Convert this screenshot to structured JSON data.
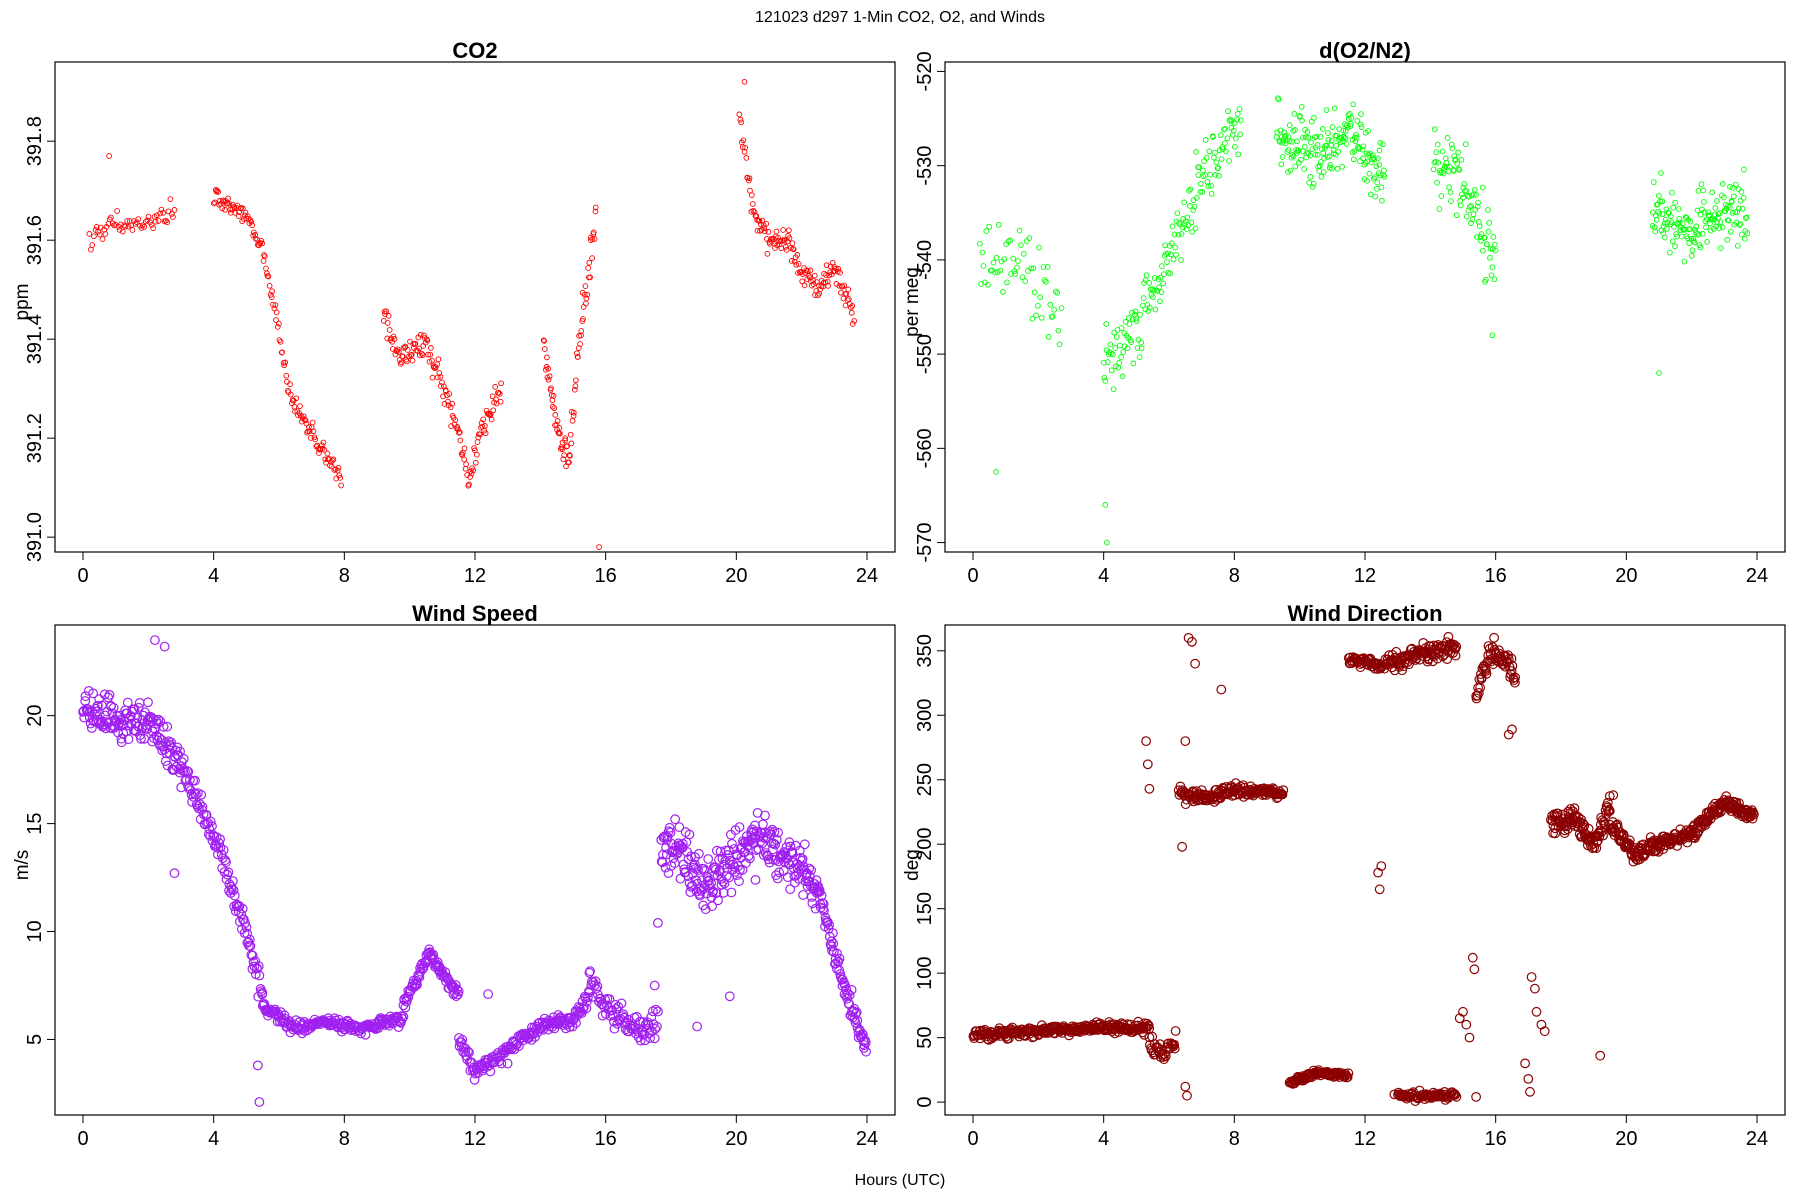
{
  "figure": {
    "suptitle": "121023   d297   1-Min CO2, O2, and Winds",
    "xlabel": "Hours (UTC)"
  },
  "chart_data": [
    {
      "id": "co2",
      "type": "scatter",
      "title": "CO2",
      "ylabel": "ppm",
      "xlim": [
        0,
        24
      ],
      "ylim": [
        390.97,
        391.96
      ],
      "xticks": [
        0,
        4,
        8,
        12,
        16,
        20,
        24
      ],
      "yticks": [
        391.0,
        391.2,
        391.4,
        391.6,
        391.8
      ],
      "ytick_labels": [
        "391.0",
        "391.2",
        "391.4",
        "391.6",
        "391.8"
      ],
      "color": "#ff0000",
      "marker_size": "small",
      "segments": [
        {
          "x0": 0.2,
          "x1": 2.8,
          "n": 60,
          "y": [
            [
              0.2,
              391.61
            ],
            [
              1.0,
              391.63
            ],
            [
              1.8,
              391.63
            ],
            [
              2.8,
              391.66
            ]
          ],
          "noise": 0.025
        },
        {
          "x0": 4.0,
          "x1": 7.9,
          "n": 140,
          "y": [
            [
              4.0,
              391.69
            ],
            [
              5.0,
              391.65
            ],
            [
              5.5,
              391.58
            ],
            [
              6.0,
              391.42
            ],
            [
              6.3,
              391.29
            ],
            [
              7.0,
              391.21
            ],
            [
              7.9,
              391.12
            ]
          ],
          "noise": 0.025
        },
        {
          "x0": 9.2,
          "x1": 12.8,
          "n": 140,
          "y": [
            [
              9.2,
              391.47
            ],
            [
              9.6,
              391.36
            ],
            [
              10.5,
              391.39
            ],
            [
              11.2,
              391.28
            ],
            [
              11.8,
              391.12
            ],
            [
              12.2,
              391.22
            ],
            [
              12.8,
              391.3
            ]
          ],
          "noise": 0.035
        },
        {
          "x0": 14.1,
          "x1": 15.7,
          "n": 80,
          "y": [
            [
              14.1,
              391.38
            ],
            [
              14.6,
              391.2
            ],
            [
              14.9,
              391.16
            ],
            [
              15.2,
              391.4
            ],
            [
              15.7,
              391.64
            ]
          ],
          "noise": 0.05
        },
        {
          "x0": 20.1,
          "x1": 23.6,
          "n": 140,
          "y": [
            [
              20.1,
              391.85
            ],
            [
              20.5,
              391.66
            ],
            [
              21.0,
              391.6
            ],
            [
              21.5,
              391.6
            ],
            [
              22.0,
              391.54
            ],
            [
              22.5,
              391.5
            ],
            [
              23.0,
              391.55
            ],
            [
              23.6,
              391.45
            ]
          ],
          "noise": 0.03
        }
      ],
      "points": [
        [
          15.8,
          390.98
        ],
        [
          0.8,
          391.77
        ],
        [
          20.25,
          391.92
        ]
      ]
    },
    {
      "id": "o2",
      "type": "scatter",
      "title": "d(O2/N2)",
      "ylabel": "per meg",
      "xlim": [
        0,
        24
      ],
      "ylim": [
        -571,
        -519
      ],
      "xticks": [
        0,
        4,
        8,
        12,
        16,
        20,
        24
      ],
      "yticks": [
        -570,
        -560,
        -550,
        -540,
        -530,
        -520
      ],
      "ytick_labels": [
        "-570",
        "-560",
        "-550",
        "-540",
        "-530",
        "-520"
      ],
      "color": "#00ff00",
      "marker_size": "small",
      "segments": [
        {
          "x0": 0.2,
          "x1": 2.7,
          "n": 60,
          "y": [
            [
              0.2,
              -540
            ],
            [
              1.5,
              -541
            ],
            [
              2.7,
              -546
            ]
          ],
          "noise": 6
        },
        {
          "x0": 4.0,
          "x1": 8.2,
          "n": 170,
          "y": [
            [
              4.0,
              -551
            ],
            [
              5.0,
              -547
            ],
            [
              6.0,
              -540
            ],
            [
              7.0,
              -531
            ],
            [
              8.2,
              -526
            ]
          ],
          "noise": 4.5
        },
        {
          "x0": 9.3,
          "x1": 12.6,
          "n": 180,
          "y": [
            [
              9.3,
              -526
            ],
            [
              10.5,
              -529
            ],
            [
              11.5,
              -526
            ],
            [
              12.6,
              -532
            ]
          ],
          "noise": 4.5
        },
        {
          "x0": 14.1,
          "x1": 16.0,
          "n": 90,
          "y": [
            [
              14.1,
              -529
            ],
            [
              15.0,
              -532
            ],
            [
              16.0,
              -540
            ]
          ],
          "noise": 5
        },
        {
          "x0": 20.8,
          "x1": 23.7,
          "n": 150,
          "y": [
            [
              20.8,
              -535
            ],
            [
              22.0,
              -537
            ],
            [
              23.0,
              -534
            ],
            [
              23.7,
              -535
            ]
          ],
          "noise": 4.5
        }
      ],
      "points": [
        [
          4.05,
          -566
        ],
        [
          4.1,
          -570
        ],
        [
          0.7,
          -562.5
        ],
        [
          15.9,
          -548
        ],
        [
          21.0,
          -552
        ]
      ]
    },
    {
      "id": "wspd",
      "type": "scatter",
      "title": "Wind Speed",
      "ylabel": "m/s",
      "xlim": [
        0,
        24
      ],
      "ylim": [
        1.5,
        24.2
      ],
      "xticks": [
        0,
        4,
        8,
        12,
        16,
        20,
        24
      ],
      "yticks": [
        5,
        10,
        15,
        20
      ],
      "ytick_labels": [
        "5",
        "10",
        "15",
        "20"
      ],
      "color": "#a020f0",
      "marker_size": "large",
      "segments": [
        {
          "x0": 0.0,
          "x1": 3.0,
          "n": 150,
          "y": [
            [
              0.0,
              20.6
            ],
            [
              1.0,
              19.8
            ],
            [
              2.0,
              19.8
            ],
            [
              3.0,
              17.5
            ]
          ],
          "noise": 1.2
        },
        {
          "x0": 3.0,
          "x1": 5.5,
          "n": 110,
          "y": [
            [
              3.0,
              17.5
            ],
            [
              4.0,
              14.5
            ],
            [
              5.0,
              10.0
            ],
            [
              5.5,
              7.0
            ]
          ],
          "noise": 0.8
        },
        {
          "x0": 5.5,
          "x1": 9.8,
          "n": 180,
          "y": [
            [
              5.5,
              6.5
            ],
            [
              6.5,
              5.5
            ],
            [
              7.5,
              5.8
            ],
            [
              8.5,
              5.5
            ],
            [
              9.8,
              6.0
            ]
          ],
          "noise": 0.35
        },
        {
          "x0": 9.8,
          "x1": 11.5,
          "n": 80,
          "y": [
            [
              9.8,
              6.5
            ],
            [
              10.6,
              9.0
            ],
            [
              11.0,
              8.0
            ],
            [
              11.5,
              7.0
            ]
          ],
          "noise": 0.4
        },
        {
          "x0": 11.5,
          "x1": 15.5,
          "n": 170,
          "y": [
            [
              11.5,
              5.0
            ],
            [
              12.0,
              3.5
            ],
            [
              13.0,
              4.5
            ],
            [
              14.0,
              5.6
            ],
            [
              15.0,
              6.0
            ],
            [
              15.5,
              7.0
            ]
          ],
          "noise": 0.45
        },
        {
          "x0": 15.5,
          "x1": 17.6,
          "n": 80,
          "y": [
            [
              15.5,
              8.0
            ],
            [
              16.0,
              6.5
            ],
            [
              17.0,
              5.5
            ],
            [
              17.6,
              5.7
            ]
          ],
          "noise": 0.9
        },
        {
          "x0": 17.7,
          "x1": 22.5,
          "n": 260,
          "y": [
            [
              17.7,
              14.0
            ],
            [
              18.5,
              13.5
            ],
            [
              19.0,
              12.0
            ],
            [
              20.0,
              13.5
            ],
            [
              20.5,
              14.5
            ],
            [
              21.5,
              13.5
            ],
            [
              22.5,
              12.0
            ]
          ],
          "noise": 1.5
        },
        {
          "x0": 22.5,
          "x1": 24.0,
          "n": 80,
          "y": [
            [
              22.5,
              12.0
            ],
            [
              23.0,
              9.0
            ],
            [
              23.5,
              6.5
            ],
            [
              24.0,
              4.5
            ]
          ],
          "noise": 0.7
        }
      ],
      "points": [
        [
          5.4,
          2.1
        ],
        [
          5.35,
          3.8
        ],
        [
          2.2,
          23.5
        ],
        [
          2.5,
          23.2
        ],
        [
          2.8,
          12.7
        ],
        [
          12.4,
          7.1
        ],
        [
          17.5,
          7.5
        ],
        [
          17.6,
          10.4
        ],
        [
          18.8,
          5.6
        ],
        [
          19.8,
          7.0
        ]
      ]
    },
    {
      "id": "wdir",
      "type": "scatter",
      "title": "Wind Direction",
      "ylabel": "deg",
      "xlim": [
        0,
        24
      ],
      "ylim": [
        -10,
        370
      ],
      "xticks": [
        0,
        4,
        8,
        12,
        16,
        20,
        24
      ],
      "yticks": [
        0,
        50,
        100,
        150,
        200,
        250,
        300,
        350
      ],
      "ytick_labels": [
        "0",
        "50",
        "100",
        "150",
        "200",
        "250",
        "300",
        "350"
      ],
      "color": "#8b0000",
      "marker_size": "large",
      "segments": [
        {
          "x0": 0.0,
          "x1": 5.4,
          "n": 260,
          "y": [
            [
              0.0,
              52
            ],
            [
              2.0,
              55
            ],
            [
              4.0,
              58
            ],
            [
              5.4,
              57
            ]
          ],
          "noise": 5
        },
        {
          "x0": 5.4,
          "x1": 6.2,
          "n": 35,
          "y": [
            [
              5.4,
              45
            ],
            [
              5.8,
              38
            ],
            [
              6.2,
              45
            ]
          ],
          "noise": 8
        },
        {
          "x0": 6.3,
          "x1": 9.5,
          "n": 160,
          "y": [
            [
              6.3,
              240
            ],
            [
              7.0,
              235
            ],
            [
              8.0,
              242
            ],
            [
              9.5,
              240
            ]
          ],
          "noise": 6
        },
        {
          "x0": 9.7,
          "x1": 11.5,
          "n": 80,
          "y": [
            [
              9.7,
              15
            ],
            [
              10.5,
              23
            ],
            [
              11.5,
              20
            ]
          ],
          "noise": 3
        },
        {
          "x0": 11.5,
          "x1": 12.5,
          "n": 50,
          "y": [
            [
              11.5,
              342
            ],
            [
              12.0,
              342
            ],
            [
              12.5,
              337
            ]
          ],
          "noise": 5
        },
        {
          "x0": 12.6,
          "x1": 14.8,
          "n": 110,
          "y": [
            [
              12.6,
              340
            ],
            [
              13.5,
              347
            ],
            [
              14.8,
              352
            ]
          ],
          "noise": 9
        },
        {
          "x0": 13.0,
          "x1": 14.8,
          "n": 70,
          "y": [
            [
              13.0,
              6
            ],
            [
              14.0,
              4
            ],
            [
              14.8,
              6
            ]
          ],
          "noise": 4
        },
        {
          "x0": 15.4,
          "x1": 16.6,
          "n": 60,
          "y": [
            [
              15.4,
              315
            ],
            [
              15.8,
              350
            ],
            [
              16.2,
              345
            ],
            [
              16.6,
              330
            ]
          ],
          "noise": 12
        },
        {
          "x0": 17.7,
          "x1": 19.5,
          "n": 110,
          "y": [
            [
              17.7,
              215
            ],
            [
              18.4,
              220
            ],
            [
              19.0,
              200
            ],
            [
              19.5,
              230
            ]
          ],
          "noise": 12
        },
        {
          "x0": 19.5,
          "x1": 23.9,
          "n": 260,
          "y": [
            [
              19.5,
              215
            ],
            [
              20.3,
              192
            ],
            [
              21.0,
              200
            ],
            [
              22.0,
              208
            ],
            [
              23.0,
              232
            ],
            [
              23.9,
              222
            ]
          ],
          "noise": 7
        }
      ],
      "points": [
        [
          5.3,
          280
        ],
        [
          5.35,
          262
        ],
        [
          5.4,
          243
        ],
        [
          6.5,
          12
        ],
        [
          6.55,
          5
        ],
        [
          6.6,
          360
        ],
        [
          6.7,
          357
        ],
        [
          6.8,
          340
        ],
        [
          7.6,
          320
        ],
        [
          6.4,
          198
        ],
        [
          6.5,
          280
        ],
        [
          12.4,
          178
        ],
        [
          12.45,
          165
        ],
        [
          12.5,
          183
        ],
        [
          12.9,
          6
        ],
        [
          14.9,
          65
        ],
        [
          15.0,
          70
        ],
        [
          15.1,
          60
        ],
        [
          15.2,
          50
        ],
        [
          15.3,
          112
        ],
        [
          15.35,
          103
        ],
        [
          15.4,
          4
        ],
        [
          16.4,
          285
        ],
        [
          16.5,
          289
        ],
        [
          16.9,
          30
        ],
        [
          17.0,
          18
        ],
        [
          17.05,
          8
        ],
        [
          17.1,
          97
        ],
        [
          17.2,
          88
        ],
        [
          17.25,
          70
        ],
        [
          17.4,
          60
        ],
        [
          17.5,
          55
        ],
        [
          19.2,
          36
        ],
        [
          19.6,
          238
        ]
      ]
    }
  ]
}
